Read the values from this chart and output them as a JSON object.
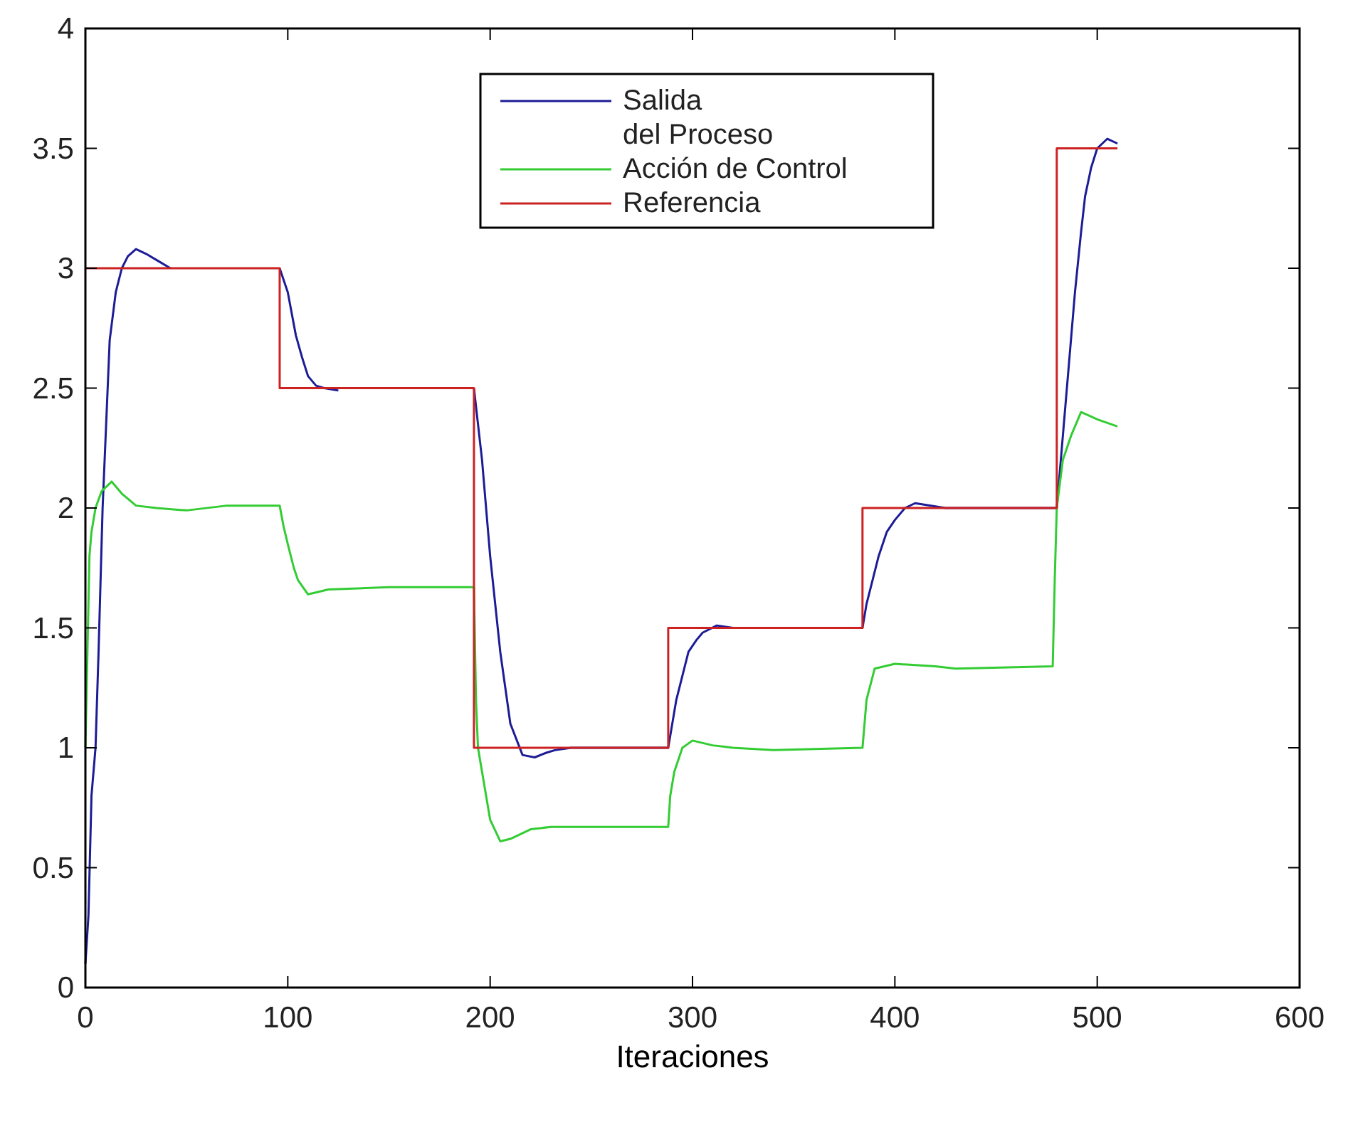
{
  "chart_data": {
    "type": "line",
    "xlabel": "Iteraciones",
    "xlim": [
      0,
      600
    ],
    "xticks": [
      0,
      100,
      200,
      300,
      400,
      500,
      600
    ],
    "ylim": [
      0,
      4
    ],
    "yticks": [
      0,
      0.5,
      1,
      1.5,
      2,
      2.5,
      3,
      3.5,
      4
    ],
    "grid": false,
    "legend": "top",
    "marker": "none",
    "line_style": "solid",
    "series": [
      {
        "name": "Salida\ndel Proceso",
        "color": "#1c1c96",
        "x": [
          0,
          1.5,
          3,
          5,
          6.5,
          8.5,
          10,
          12,
          15,
          18,
          21,
          25,
          30,
          36,
          42,
          60,
          80,
          96,
          100,
          104,
          107,
          110,
          114,
          118,
          125,
          150,
          192,
          194,
          196,
          200,
          205,
          210,
          216,
          222,
          228,
          232,
          240,
          288,
          290,
          292,
          295,
          298,
          302,
          305,
          312,
          320,
          384,
          386,
          389,
          392,
          396,
          400,
          405,
          410,
          425,
          480,
          481,
          483,
          486,
          489,
          492,
          494,
          497,
          500,
          505,
          510
        ],
        "values": [
          0.1,
          0.3,
          0.8,
          1.0,
          1.4,
          2.0,
          2.3,
          2.7,
          2.9,
          3.0,
          3.05,
          3.08,
          3.06,
          3.03,
          3.0,
          null,
          null,
          3.0,
          2.9,
          2.72,
          2.63,
          2.55,
          2.51,
          2.5,
          2.49,
          null,
          2.5,
          2.35,
          2.2,
          1.8,
          1.4,
          1.1,
          0.97,
          0.96,
          0.98,
          0.99,
          1.0,
          1.0,
          1.1,
          1.2,
          1.3,
          1.4,
          1.45,
          1.48,
          1.51,
          1.5,
          1.5,
          1.6,
          1.7,
          1.8,
          1.9,
          1.95,
          2.0,
          2.02,
          2.0,
          2.0,
          2.1,
          2.3,
          2.6,
          2.9,
          3.15,
          3.3,
          3.42,
          3.5,
          3.54,
          3.52
        ]
      },
      {
        "name": "Acción de Control",
        "color": "#33cc33",
        "x": [
          0,
          1,
          2,
          3,
          5,
          8,
          13,
          18,
          25,
          35,
          50,
          70,
          96,
          98,
          100,
          103,
          105,
          110,
          115,
          120,
          150,
          192,
          193,
          194,
          196,
          200,
          205,
          210,
          220,
          230,
          288,
          289,
          291,
          295,
          300,
          310,
          320,
          340,
          384,
          385,
          386,
          390,
          400,
          420,
          430,
          478,
          479,
          480,
          483,
          487,
          492,
          500,
          510
        ],
        "values": [
          1.0,
          1.4,
          1.8,
          1.9,
          2.0,
          2.07,
          2.11,
          2.06,
          2.01,
          2.0,
          1.99,
          2.01,
          2.01,
          1.92,
          1.85,
          1.75,
          1.7,
          1.64,
          1.65,
          1.66,
          1.67,
          1.67,
          1.2,
          1.0,
          0.9,
          0.7,
          0.61,
          0.62,
          0.66,
          0.67,
          0.67,
          0.8,
          0.9,
          1.0,
          1.03,
          1.01,
          1.0,
          0.99,
          1.0,
          1.1,
          1.2,
          1.33,
          1.35,
          1.34,
          1.33,
          1.34,
          1.7,
          2.0,
          2.2,
          2.3,
          2.4,
          2.37,
          2.34
        ]
      },
      {
        "name": "Referencia",
        "color": "#cc2222",
        "type": "step",
        "x": [
          0,
          96,
          192,
          288,
          384,
          480,
          510
        ],
        "values": [
          3,
          2.5,
          1,
          1.5,
          2,
          3.5,
          3.5
        ]
      }
    ]
  }
}
